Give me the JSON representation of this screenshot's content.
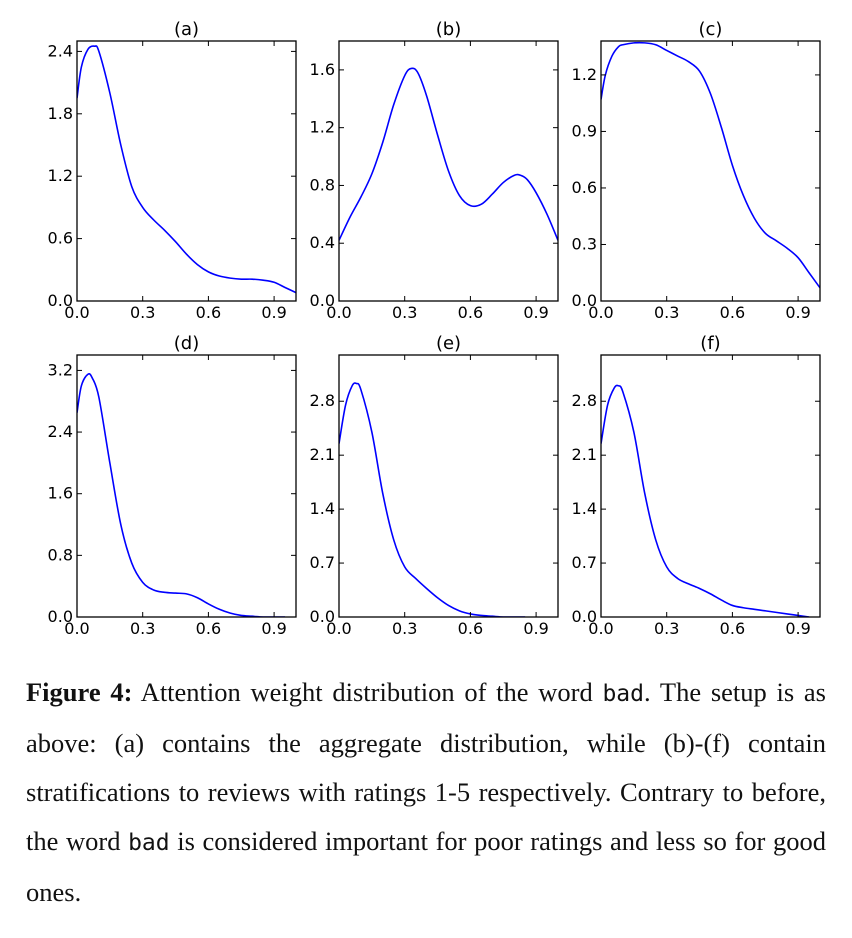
{
  "chart_data": [
    {
      "type": "line",
      "title": "(a)",
      "xlim": [
        0,
        1
      ],
      "ylim": [
        0,
        2.5
      ],
      "xticks": [
        0.0,
        0.3,
        0.6,
        0.9
      ],
      "xtick_labels": [
        "0.0",
        "0.3",
        "0.6",
        "0.9"
      ],
      "yticks": [
        0.0,
        0.6,
        1.2,
        1.8,
        2.4
      ],
      "ytick_labels": [
        "0.0",
        "0.6",
        "1.2",
        "1.8",
        "2.4"
      ],
      "color": "#0000ff",
      "x": [
        0,
        0.02,
        0.05,
        0.08,
        0.1,
        0.15,
        0.2,
        0.25,
        0.3,
        0.35,
        0.4,
        0.45,
        0.5,
        0.55,
        0.6,
        0.65,
        0.7,
        0.75,
        0.8,
        0.85,
        0.9,
        0.95,
        1.0
      ],
      "y": [
        1.95,
        2.25,
        2.42,
        2.45,
        2.4,
        2.0,
        1.5,
        1.1,
        0.9,
        0.78,
        0.68,
        0.57,
        0.45,
        0.35,
        0.28,
        0.24,
        0.22,
        0.21,
        0.21,
        0.2,
        0.18,
        0.13,
        0.08
      ]
    },
    {
      "type": "line",
      "title": "(b)",
      "xlim": [
        0,
        1
      ],
      "ylim": [
        0,
        1.8
      ],
      "xticks": [
        0.0,
        0.3,
        0.6,
        0.9
      ],
      "xtick_labels": [
        "0.0",
        "0.3",
        "0.6",
        "0.9"
      ],
      "yticks": [
        0.0,
        0.4,
        0.8,
        1.2,
        1.6
      ],
      "ytick_labels": [
        "0.0",
        "0.4",
        "0.8",
        "1.2",
        "1.6"
      ],
      "color": "#0000ff",
      "x": [
        0,
        0.05,
        0.1,
        0.15,
        0.2,
        0.25,
        0.3,
        0.33,
        0.36,
        0.4,
        0.45,
        0.5,
        0.55,
        0.6,
        0.65,
        0.7,
        0.75,
        0.8,
        0.83,
        0.86,
        0.9,
        0.95,
        1.0
      ],
      "y": [
        0.42,
        0.58,
        0.72,
        0.88,
        1.1,
        1.36,
        1.56,
        1.61,
        1.58,
        1.42,
        1.15,
        0.9,
        0.73,
        0.66,
        0.67,
        0.74,
        0.82,
        0.87,
        0.87,
        0.84,
        0.75,
        0.6,
        0.42
      ]
    },
    {
      "type": "line",
      "title": "(c)",
      "xlim": [
        0,
        1
      ],
      "ylim": [
        0,
        1.38
      ],
      "xticks": [
        0.0,
        0.3,
        0.6,
        0.9
      ],
      "xtick_labels": [
        "0.0",
        "0.3",
        "0.6",
        "0.9"
      ],
      "yticks": [
        0.0,
        0.3,
        0.6,
        0.9,
        1.2
      ],
      "ytick_labels": [
        "0.0",
        "0.3",
        "0.6",
        "0.9",
        "1.2"
      ],
      "color": "#0000ff",
      "x": [
        0,
        0.02,
        0.05,
        0.08,
        0.1,
        0.15,
        0.2,
        0.25,
        0.3,
        0.35,
        0.4,
        0.45,
        0.5,
        0.55,
        0.6,
        0.65,
        0.7,
        0.75,
        0.8,
        0.85,
        0.9,
        0.95,
        1.0
      ],
      "y": [
        1.07,
        1.2,
        1.3,
        1.35,
        1.36,
        1.37,
        1.37,
        1.36,
        1.33,
        1.3,
        1.27,
        1.22,
        1.1,
        0.92,
        0.72,
        0.56,
        0.44,
        0.36,
        0.32,
        0.28,
        0.23,
        0.15,
        0.07
      ]
    },
    {
      "type": "line",
      "title": "(d)",
      "xlim": [
        0,
        1
      ],
      "ylim": [
        0,
        3.4
      ],
      "xticks": [
        0.0,
        0.3,
        0.6,
        0.9
      ],
      "xtick_labels": [
        "0.0",
        "0.3",
        "0.6",
        "0.9"
      ],
      "yticks": [
        0.0,
        0.8,
        1.6,
        2.4,
        3.2
      ],
      "ytick_labels": [
        "0.0",
        "0.8",
        "1.6",
        "2.4",
        "3.2"
      ],
      "color": "#0000ff",
      "x": [
        0,
        0.02,
        0.05,
        0.07,
        0.1,
        0.15,
        0.2,
        0.25,
        0.3,
        0.35,
        0.4,
        0.45,
        0.5,
        0.55,
        0.6,
        0.65,
        0.7,
        0.75,
        0.8,
        0.85,
        0.9,
        0.95
      ],
      "y": [
        2.65,
        3.0,
        3.15,
        3.1,
        2.85,
        2.0,
        1.2,
        0.7,
        0.45,
        0.35,
        0.32,
        0.31,
        0.3,
        0.25,
        0.17,
        0.1,
        0.05,
        0.02,
        0.01,
        0.0,
        0.0,
        0.0
      ]
    },
    {
      "type": "line",
      "title": "(e)",
      "xlim": [
        0,
        1
      ],
      "ylim": [
        0,
        3.4
      ],
      "xticks": [
        0.0,
        0.3,
        0.6,
        0.9
      ],
      "xtick_labels": [
        "0.0",
        "0.3",
        "0.6",
        "0.9"
      ],
      "yticks": [
        0.0,
        0.7,
        1.4,
        2.1,
        2.8
      ],
      "ytick_labels": [
        "0.0",
        "0.7",
        "1.4",
        "2.1",
        "2.8"
      ],
      "color": "#0000ff",
      "x": [
        0,
        0.03,
        0.06,
        0.08,
        0.1,
        0.15,
        0.2,
        0.25,
        0.3,
        0.35,
        0.4,
        0.45,
        0.5,
        0.55,
        0.6,
        0.65,
        0.7,
        0.75,
        0.8,
        0.85
      ],
      "y": [
        2.25,
        2.75,
        3.0,
        3.03,
        2.95,
        2.4,
        1.6,
        1.0,
        0.65,
        0.5,
        0.37,
        0.25,
        0.15,
        0.08,
        0.04,
        0.02,
        0.01,
        0.0,
        0.0,
        0.0
      ]
    },
    {
      "type": "line",
      "title": "(f)",
      "xlim": [
        0,
        1
      ],
      "ylim": [
        0,
        3.4
      ],
      "xticks": [
        0.0,
        0.3,
        0.6,
        0.9
      ],
      "xtick_labels": [
        "0.0",
        "0.3",
        "0.6",
        "0.9"
      ],
      "yticks": [
        0.0,
        0.7,
        1.4,
        2.1,
        2.8
      ],
      "ytick_labels": [
        "0.0",
        "0.7",
        "1.4",
        "2.1",
        "2.8"
      ],
      "color": "#0000ff",
      "x": [
        0,
        0.03,
        0.06,
        0.08,
        0.1,
        0.15,
        0.2,
        0.25,
        0.3,
        0.35,
        0.4,
        0.45,
        0.5,
        0.55,
        0.6,
        0.65,
        0.7,
        0.75,
        0.8,
        0.85,
        0.9,
        0.95
      ],
      "y": [
        2.25,
        2.75,
        2.97,
        3.0,
        2.92,
        2.4,
        1.6,
        1.0,
        0.65,
        0.5,
        0.43,
        0.37,
        0.3,
        0.22,
        0.15,
        0.12,
        0.1,
        0.08,
        0.06,
        0.04,
        0.02,
        0.0
      ]
    }
  ],
  "caption": {
    "label": "Figure 4:",
    "segments": [
      {
        "text": " Attention weight distribution of the word ",
        "mono": false
      },
      {
        "text": "bad",
        "mono": true
      },
      {
        "text": ". The setup is as above: (a) contains the aggregate distribution, while (b)-(f) contain stratifications to reviews with ratings 1-5 respectively. Contrary to before, the word ",
        "mono": false
      },
      {
        "text": "bad",
        "mono": true
      },
      {
        "text": " is considered important for poor ratings and less so for good ones.",
        "mono": false
      }
    ]
  }
}
